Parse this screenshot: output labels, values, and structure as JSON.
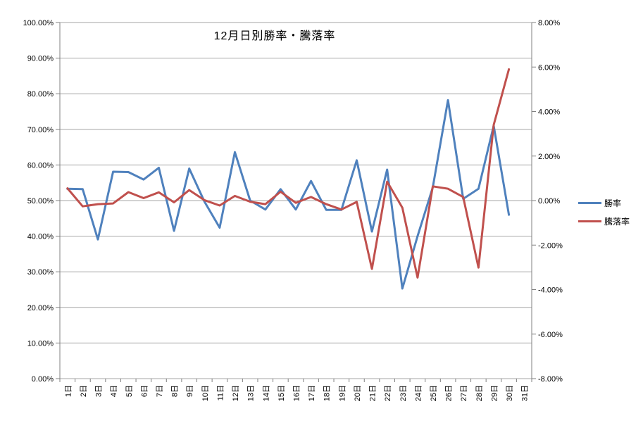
{
  "chart_data": {
    "type": "line",
    "title": "12月日別勝率・騰落率",
    "categories": [
      "1日",
      "2日",
      "3日",
      "4日",
      "5日",
      "6日",
      "7日",
      "8日",
      "9日",
      "10日",
      "11日",
      "12日",
      "13日",
      "14日",
      "15日",
      "16日",
      "17日",
      "18日",
      "19日",
      "20日",
      "21日",
      "22日",
      "23日",
      "24日",
      "25日",
      "26日",
      "27日",
      "28日",
      "29日",
      "30日",
      "31日"
    ],
    "series": [
      {
        "name": "勝率",
        "axis": "left",
        "color": "#4F81BD",
        "values": [
          53.3,
          53.2,
          39.1,
          58.1,
          58.0,
          55.9,
          59.2,
          41.5,
          59.0,
          49.7,
          42.4,
          63.6,
          50.0,
          47.5,
          53.2,
          47.5,
          55.5,
          47.4,
          47.4,
          61.3,
          41.3,
          58.7,
          25.3,
          40.0,
          53.7,
          78.2,
          50.5,
          53.3,
          71.0,
          46.0,
          null
        ]
      },
      {
        "name": "騰落率",
        "axis": "right",
        "color": "#C0504D",
        "values": [
          0.55,
          -0.26,
          -0.16,
          -0.13,
          0.38,
          0.11,
          0.37,
          -0.08,
          0.47,
          0.02,
          -0.22,
          0.21,
          -0.05,
          -0.16,
          0.4,
          -0.1,
          0.16,
          -0.16,
          -0.4,
          -0.06,
          -3.07,
          0.85,
          -0.32,
          -3.46,
          0.64,
          0.53,
          0.16,
          -3.01,
          3.4,
          5.9,
          null
        ]
      }
    ],
    "left_axis": {
      "min": 0,
      "max": 100,
      "step": 10,
      "tick_labels": [
        "100.00%",
        "90.00%",
        "80.00%",
        "70.00%",
        "60.00%",
        "50.00%",
        "40.00%",
        "30.00%",
        "20.00%",
        "10.00%",
        "0.00%"
      ]
    },
    "right_axis": {
      "min": -8,
      "max": 8,
      "step": 2,
      "tick_labels": [
        "8.00%",
        "6.00%",
        "4.00%",
        "2.00%",
        "0.00%",
        "-2.00%",
        "-4.00%",
        "-6.00%",
        "-8.00%"
      ]
    },
    "grid": true,
    "legend_position": "right",
    "gridline_color": "#A6A6A6",
    "axis_line_color": "#808080",
    "text_color": "#000000"
  },
  "legend": {
    "items": [
      {
        "label": "勝率",
        "color": "#4F81BD"
      },
      {
        "label": "騰落率",
        "color": "#C0504D"
      }
    ]
  }
}
